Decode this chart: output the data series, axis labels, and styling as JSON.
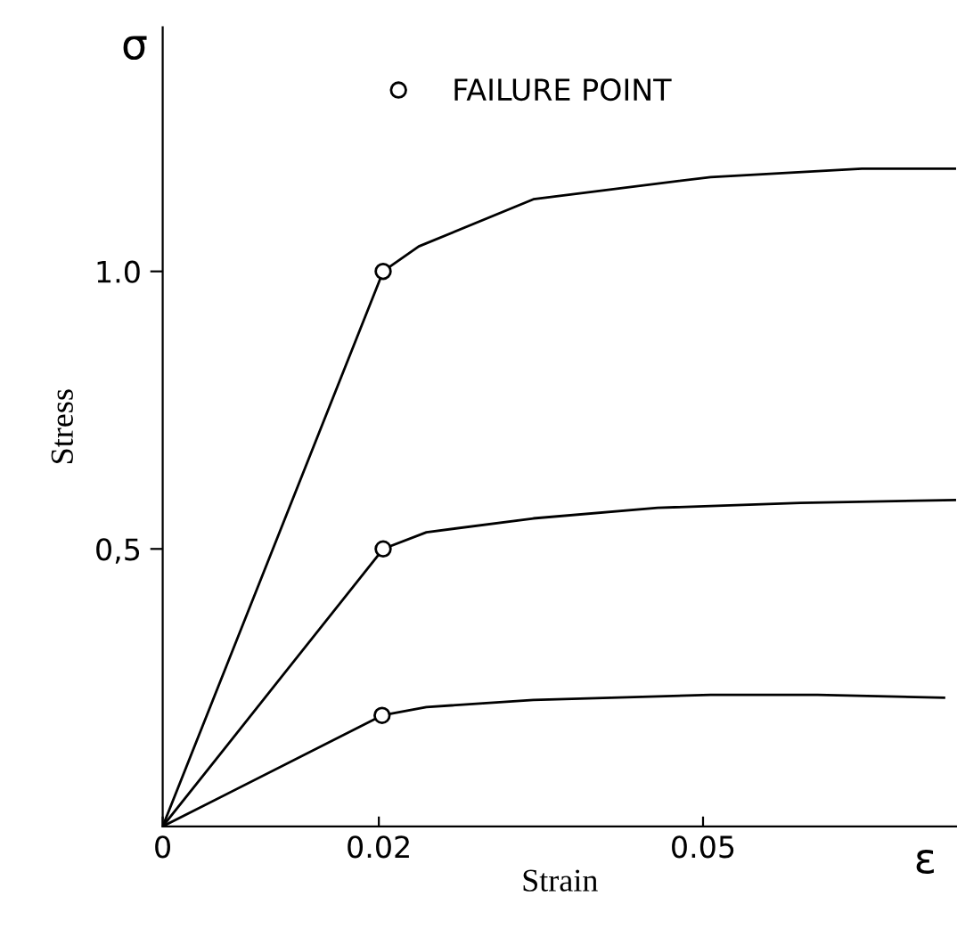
{
  "chart_data": {
    "type": "line",
    "xlabel": "Strain",
    "ylabel": "Stress",
    "annotations": [
      "σ",
      "ε"
    ],
    "xlim": [
      0,
      0.0735
    ],
    "ylim": [
      0,
      1.44
    ],
    "xticks": [
      0,
      0.02,
      0.05
    ],
    "yticks": [
      {
        "value": 0.5,
        "label": "0,5"
      },
      {
        "value": 1.0,
        "label": "1.0"
      }
    ],
    "grid": false,
    "legend": "top",
    "line_style": "solid",
    "series": [
      {
        "color": "#000000",
        "marker": "none",
        "x": [
          0,
          0.0204,
          0.0237,
          0.0343,
          0.0507,
          0.0647,
          0.0733
        ],
        "values": [
          0,
          1.0,
          1.045,
          1.13,
          1.17,
          1.185,
          1.185
        ]
      },
      {
        "color": "#000000",
        "marker": "none",
        "x": [
          0,
          0.0204,
          0.0244,
          0.0343,
          0.0458,
          0.059,
          0.0733
        ],
        "values": [
          0,
          0.5,
          0.53,
          0.555,
          0.574,
          0.583,
          0.588
        ]
      },
      {
        "color": "#000000",
        "marker": "none",
        "x": [
          0,
          0.0203,
          0.0244,
          0.0343,
          0.0507,
          0.0606,
          0.0723
        ],
        "values": [
          0,
          0.2,
          0.215,
          0.228,
          0.237,
          0.237,
          0.232
        ]
      },
      {
        "type": "scatter",
        "name": "FAILURE POINT",
        "color": "#000000",
        "marker": "circle",
        "x": [
          0.0204,
          0.0204,
          0.0203
        ],
        "values": [
          1.0,
          0.5,
          0.2
        ]
      }
    ]
  }
}
